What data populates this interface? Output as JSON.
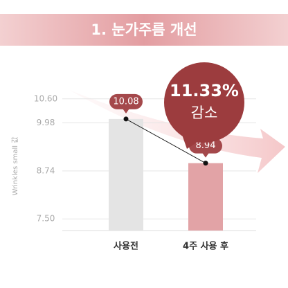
{
  "chart_data": {
    "type": "bar",
    "title": "1. 눈가주름 개선",
    "ylabel": "Wrinkles small 값",
    "categories": [
      "사용전",
      "4주 사용 후"
    ],
    "values": [
      10.08,
      8.94
    ],
    "colors": [
      "#e4e4e4",
      "#e2a3a6"
    ],
    "ylim": [
      7.2,
      10.9
    ],
    "yticks": [
      {
        "value": 10.6,
        "label": "10.60"
      },
      {
        "value": 9.98,
        "label": "9.98"
      },
      {
        "value": 8.74,
        "label": "8.74"
      },
      {
        "value": 7.5,
        "label": "7.50"
      }
    ],
    "grid": true,
    "annotation": {
      "value": "11.33%",
      "label": "감소"
    }
  }
}
